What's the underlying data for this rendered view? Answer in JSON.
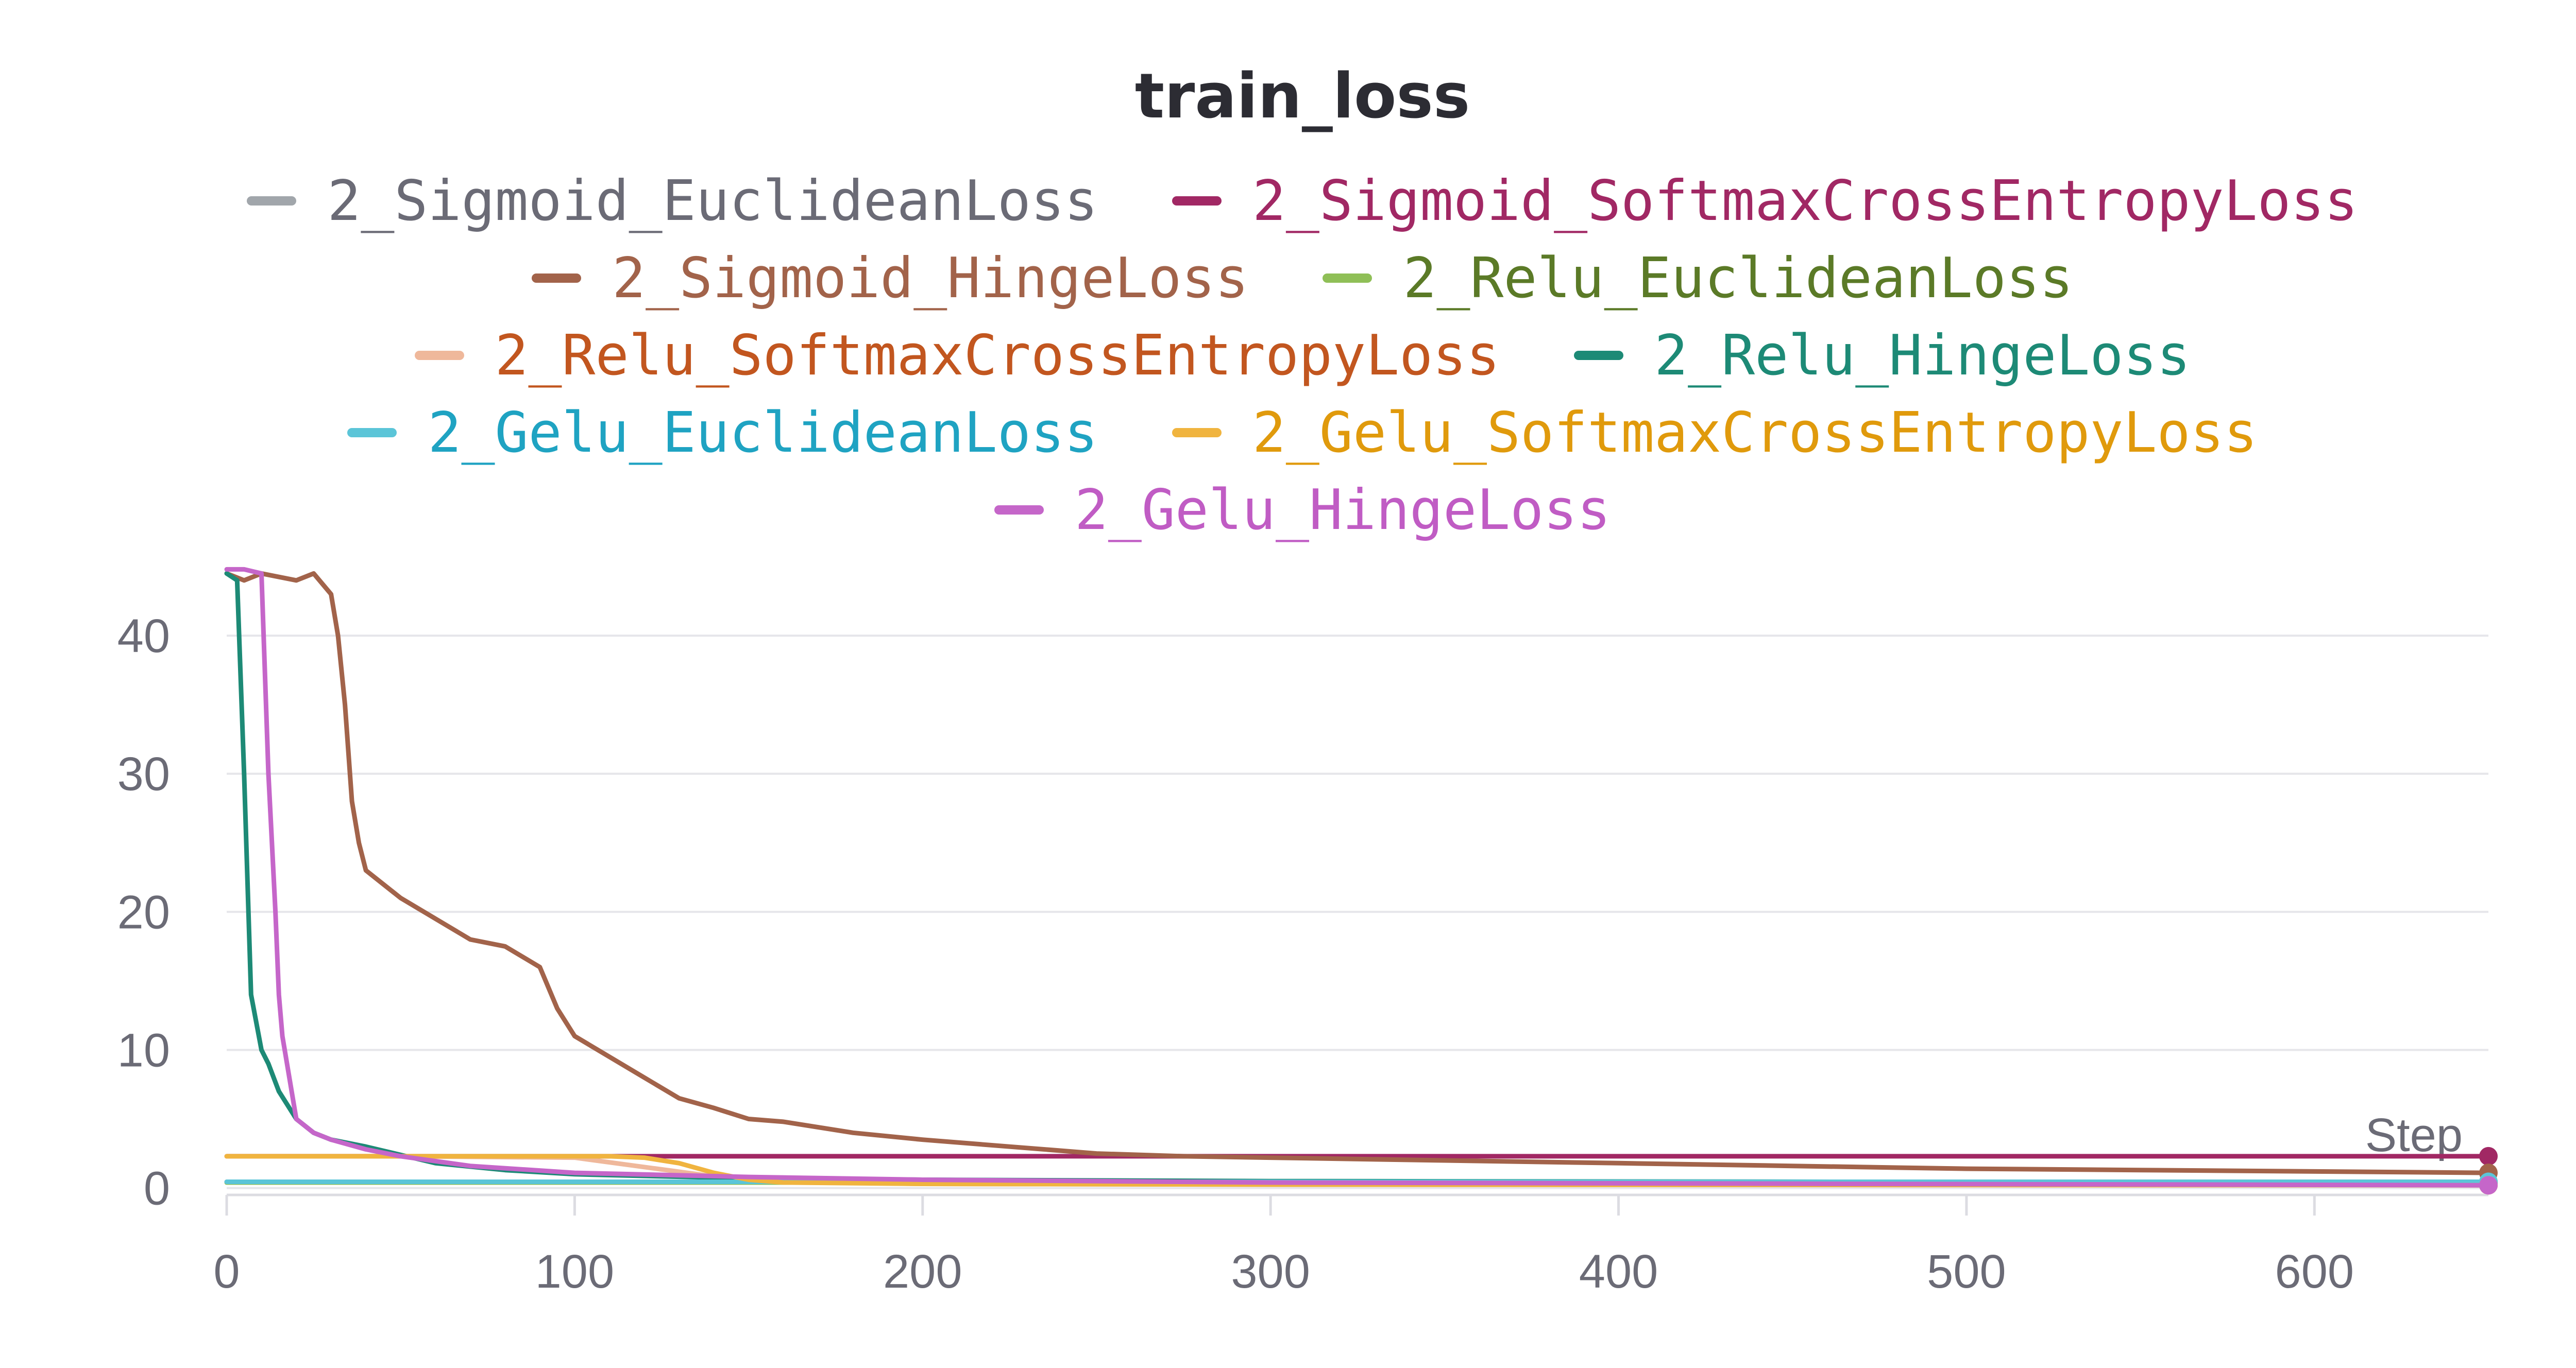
{
  "chart_data": {
    "type": "line",
    "title": "train_loss",
    "xlabel": "Step",
    "ylabel": "",
    "xlim": [
      0,
      650
    ],
    "ylim": [
      -0.5,
      45
    ],
    "x_ticks": [
      0,
      100,
      200,
      300,
      400,
      500,
      600
    ],
    "y_ticks": [
      0,
      10,
      20,
      30,
      40
    ],
    "grid": true,
    "legend_placement": "top-center",
    "series": [
      {
        "name": "2_Sigmoid_EuclideanLoss",
        "color": "#a1a6ab",
        "label_color": "#6b6b76",
        "x": [
          0,
          100,
          300,
          650
        ],
        "values": [
          0.45,
          0.45,
          0.45,
          0.45
        ]
      },
      {
        "name": "2_Sigmoid_SoftmaxCrossEntropyLoss",
        "color": "#a12864",
        "label_color": "#a12864",
        "x": [
          0,
          100,
          300,
          650
        ],
        "values": [
          2.3,
          2.3,
          2.3,
          2.3
        ]
      },
      {
        "name": "2_Sigmoid_HingeLoss",
        "color": "#a2634a",
        "label_color": "#a2634a",
        "x": [
          0,
          5,
          10,
          20,
          25,
          30,
          32,
          34,
          36,
          38,
          40,
          45,
          50,
          60,
          70,
          80,
          90,
          95,
          100,
          110,
          120,
          130,
          140,
          150,
          160,
          180,
          200,
          225,
          250,
          275,
          300,
          350,
          400,
          450,
          500,
          550,
          600,
          650
        ],
        "values": [
          44.5,
          44,
          44.5,
          44,
          44.5,
          43,
          40,
          35,
          28,
          25,
          23,
          22,
          21,
          19.5,
          18,
          17.5,
          16,
          13,
          11,
          9.5,
          8,
          6.5,
          5.8,
          5,
          4.8,
          4,
          3.5,
          3,
          2.5,
          2.3,
          2.2,
          2,
          1.8,
          1.6,
          1.4,
          1.3,
          1.2,
          1.1
        ]
      },
      {
        "name": "2_Relu_EuclideanLoss",
        "color": "#8fbf57",
        "label_color": "#5b7a27",
        "x": [
          0,
          100,
          300,
          650
        ],
        "values": [
          0.4,
          0.4,
          0.4,
          0.4
        ]
      },
      {
        "name": "2_Relu_SoftmaxCrossEntropyLoss",
        "color": "#efb89b",
        "label_color": "#c2561f",
        "x": [
          0,
          50,
          100,
          150,
          200,
          300,
          650
        ],
        "values": [
          2.3,
          2.3,
          2.2,
          0.5,
          0.3,
          0.25,
          0.2
        ]
      },
      {
        "name": "2_Relu_HingeLoss",
        "color": "#1d8a76",
        "label_color": "#1d8a76",
        "x": [
          0,
          3,
          5,
          7,
          10,
          12,
          15,
          20,
          25,
          30,
          40,
          50,
          60,
          80,
          100,
          150,
          200,
          300,
          650
        ],
        "values": [
          44.5,
          44,
          30,
          14,
          10,
          9,
          7,
          5,
          4,
          3.5,
          3,
          2.4,
          1.8,
          1.3,
          1,
          0.7,
          0.6,
          0.5,
          0.4
        ]
      },
      {
        "name": "2_Gelu_EuclideanLoss",
        "color": "#5bc5d8",
        "label_color": "#1fa3c2",
        "x": [
          0,
          100,
          300,
          650
        ],
        "values": [
          0.45,
          0.45,
          0.45,
          0.45
        ]
      },
      {
        "name": "2_Gelu_SoftmaxCrossEntropyLoss",
        "color": "#f0b43f",
        "label_color": "#e09a0c",
        "x": [
          0,
          60,
          110,
          120,
          130,
          140,
          150,
          160,
          200,
          300,
          650
        ],
        "values": [
          2.3,
          2.3,
          2.3,
          2.2,
          1.8,
          1.1,
          0.6,
          0.4,
          0.3,
          0.25,
          0.2
        ]
      },
      {
        "name": "2_Gelu_HingeLoss",
        "color": "#c566c9",
        "label_color": "#c05cc4",
        "x": [
          0,
          5,
          10,
          12,
          14,
          15,
          16,
          18,
          20,
          25,
          30,
          40,
          50,
          70,
          100,
          150,
          200,
          300,
          650
        ],
        "values": [
          44.8,
          44.8,
          44.5,
          30,
          20,
          14,
          11,
          8,
          5,
          4,
          3.5,
          2.8,
          2.3,
          1.6,
          1.1,
          0.8,
          0.6,
          0.4,
          0.2
        ]
      }
    ]
  }
}
